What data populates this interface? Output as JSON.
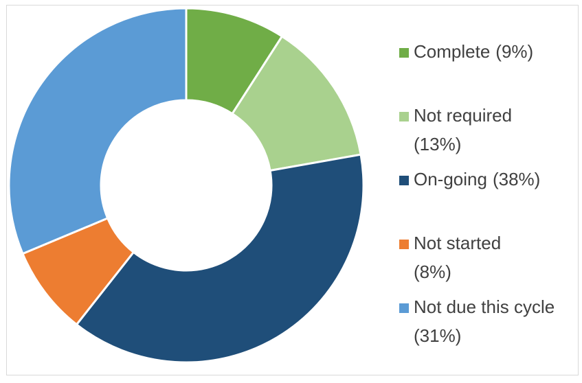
{
  "chart_data": {
    "type": "donut",
    "categories": [
      "Complete",
      "Not required",
      "On-going",
      "Not started",
      "Not due this cycle"
    ],
    "values": [
      9,
      13,
      38,
      8,
      31
    ],
    "value_labels": [
      "(9%)",
      "(13%)",
      "(38%)",
      "(8%)",
      "(31%)"
    ],
    "colors": [
      "#70ad47",
      "#a9d18e",
      "#1f4e79",
      "#ed7d31",
      "#5b9bd5"
    ],
    "legend": "right"
  }
}
